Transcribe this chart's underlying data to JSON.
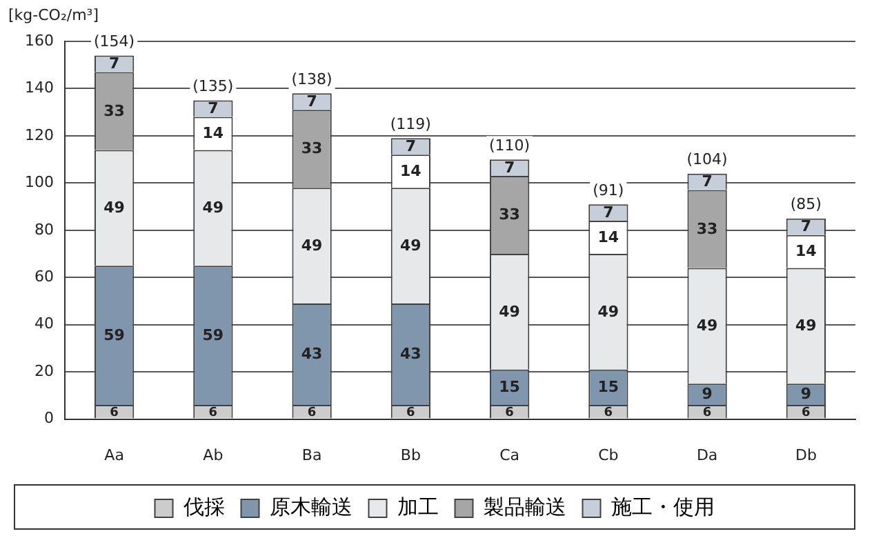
{
  "chart_data": {
    "type": "bar",
    "stacked": true,
    "ylabel": "[kg-CO₂/m³]",
    "categories": [
      "Aa",
      "Ab",
      "Ba",
      "Bb",
      "Ca",
      "Cb",
      "Da",
      "Db"
    ],
    "series": [
      {
        "name": "伐採",
        "color": "#cccccc",
        "values": [
          6,
          6,
          6,
          6,
          6,
          6,
          6,
          6
        ]
      },
      {
        "name": "原木輸送",
        "color": "#8096ad",
        "values": [
          59,
          59,
          43,
          43,
          15,
          15,
          9,
          9
        ]
      },
      {
        "name": "加工",
        "color": "#e6e8ea",
        "values": [
          49,
          49,
          49,
          49,
          49,
          49,
          49,
          49
        ]
      },
      {
        "name": "製品輸送",
        "color": "#a6a6a6",
        "colors": [
          "#a6a6a6",
          "#ffffff",
          "#a6a6a6",
          "#ffffff",
          "#a6a6a6",
          "#ffffff",
          "#a6a6a6",
          "#ffffff"
        ],
        "values": [
          33,
          14,
          33,
          14,
          33,
          14,
          33,
          14
        ]
      },
      {
        "name": "施工・使用",
        "color": "#c5ced9",
        "values": [
          7,
          7,
          7,
          7,
          7,
          7,
          7,
          7
        ]
      }
    ],
    "totals": [
      "(154)",
      "(135)",
      "(138)",
      "(119)",
      "(110)",
      "(91)",
      "(104)",
      "(85)"
    ],
    "data_labels": true,
    "ylim": [
      0,
      160
    ],
    "yticks": [
      0,
      20,
      40,
      60,
      80,
      100,
      120,
      140,
      160
    ],
    "grid": "y",
    "legend": "bottom"
  }
}
